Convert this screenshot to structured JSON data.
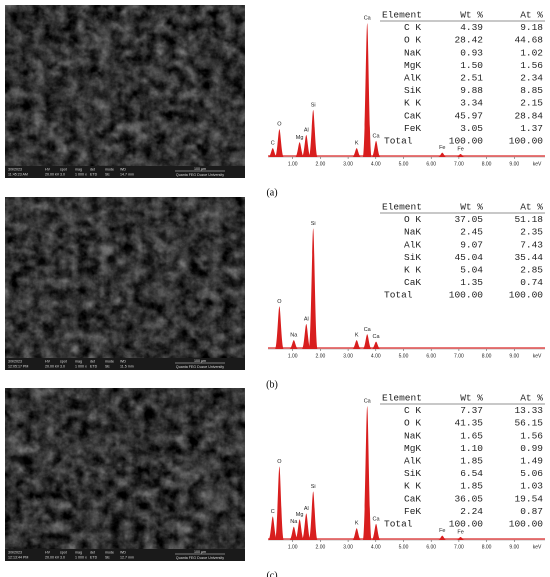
{
  "xaxis": {
    "ticks": [
      {
        "value": 1,
        "label": "1.00"
      },
      {
        "value": 2,
        "label": "2.00"
      },
      {
        "value": 3,
        "label": "3.00"
      },
      {
        "value": 4,
        "label": "4.00"
      },
      {
        "value": 5,
        "label": "5.00"
      },
      {
        "value": 6,
        "label": "6.00"
      },
      {
        "value": 7,
        "label": "7.00"
      },
      {
        "value": 8,
        "label": "8.00"
      },
      {
        "value": 9,
        "label": "9.00"
      }
    ],
    "unit": "keV",
    "xlim": [
      0,
      10
    ],
    "ylim": [
      0,
      100
    ]
  },
  "panels": [
    {
      "label": "(a)",
      "image": {
        "date": "3/9/2023",
        "time": "11:45:23 AM",
        "fields": [
          {
            "label": "HV",
            "value": "20.00 kV"
          },
          {
            "label": "spot",
            "value": "3.0"
          },
          {
            "label": "mag",
            "value": "1 000 x"
          },
          {
            "label": "det",
            "value": "ETD"
          },
          {
            "label": "mode",
            "value": "SE"
          },
          {
            "label": "WD",
            "value": "14.7 mm"
          }
        ],
        "scale": "100 µm",
        "facility": "Quanta FEG Duzce University"
      },
      "peaks": [
        {
          "label": "C",
          "kev": 0.28,
          "height": 6
        },
        {
          "label": "O",
          "kev": 0.52,
          "height": 19
        },
        {
          "label": "Mg",
          "kev": 1.25,
          "height": 10
        },
        {
          "label": "Al",
          "kev": 1.49,
          "height": 15
        },
        {
          "label": "Si",
          "kev": 1.74,
          "height": 32
        },
        {
          "label": "K",
          "kev": 3.31,
          "height": 6
        },
        {
          "label": "Ca",
          "kev": 3.69,
          "height": 91
        },
        {
          "label": "Ca",
          "kev": 4.01,
          "height": 11
        },
        {
          "label": "Fe",
          "kev": 6.4,
          "height": 3
        },
        {
          "label": "Fe",
          "kev": 7.06,
          "height": 2
        }
      ],
      "table": {
        "header": [
          "Element",
          "Wt %",
          "At %"
        ],
        "rows": [
          [
            "C K",
            "4.39",
            "9.18"
          ],
          [
            "O K",
            "28.42",
            "44.68"
          ],
          [
            "NaK",
            "0.93",
            "1.02"
          ],
          [
            "MgK",
            "1.50",
            "1.56"
          ],
          [
            "AlK",
            "2.51",
            "2.34"
          ],
          [
            "SiK",
            "9.88",
            "8.85"
          ],
          [
            "K K",
            "3.34",
            "2.15"
          ],
          [
            "CaK",
            "45.97",
            "28.84"
          ],
          [
            "FeK",
            "3.05",
            "1.37"
          ],
          [
            "Total",
            "100.00",
            "100.00"
          ]
        ]
      }
    },
    {
      "label": "(b)",
      "image": {
        "date": "3/9/2023",
        "time": "12:05:17 PM",
        "fields": [
          {
            "label": "HV",
            "value": "20.00 kV"
          },
          {
            "label": "spot",
            "value": "3.0"
          },
          {
            "label": "mag",
            "value": "1 000 x"
          },
          {
            "label": "det",
            "value": "ETD"
          },
          {
            "label": "mode",
            "value": "SE"
          },
          {
            "label": "WD",
            "value": "11.5 mm"
          }
        ],
        "scale": "100 µm",
        "facility": "Quanta FEG Duzce University"
      },
      "peaks": [
        {
          "label": "O",
          "kev": 0.52,
          "height": 29
        },
        {
          "label": "Na",
          "kev": 1.04,
          "height": 6
        },
        {
          "label": "Al",
          "kev": 1.49,
          "height": 17
        },
        {
          "label": "Si",
          "kev": 1.74,
          "height": 82
        },
        {
          "label": "K",
          "kev": 3.31,
          "height": 6
        },
        {
          "label": "Ca",
          "kev": 3.69,
          "height": 10
        },
        {
          "label": "Ca",
          "kev": 4.01,
          "height": 5
        }
      ],
      "table": {
        "header": [
          "Element",
          "Wt %",
          "At %"
        ],
        "rows": [
          [
            "O K",
            "37.05",
            "51.18"
          ],
          [
            "NaK",
            "2.45",
            "2.35"
          ],
          [
            "AlK",
            "9.07",
            "7.43"
          ],
          [
            "SiK",
            "45.04",
            "35.44"
          ],
          [
            "K K",
            "5.04",
            "2.85"
          ],
          [
            "CaK",
            "1.35",
            "0.74"
          ],
          [
            "Total",
            "100.00",
            "100.00"
          ]
        ]
      }
    },
    {
      "label": "(c)",
      "image": {
        "date": "3/9/2023",
        "time": "12:13:44 PM",
        "fields": [
          {
            "label": "HV",
            "value": "20.00 kV"
          },
          {
            "label": "spot",
            "value": "3.0"
          },
          {
            "label": "mag",
            "value": "1 000 x"
          },
          {
            "label": "det",
            "value": "ETD"
          },
          {
            "label": "mode",
            "value": "SE"
          },
          {
            "label": "WD",
            "value": "12.7 mm"
          }
        ],
        "scale": "100 µm",
        "facility": "Quanta FEG Duzce University"
      },
      "peaks": [
        {
          "label": "C",
          "kev": 0.28,
          "height": 16
        },
        {
          "label": "O",
          "kev": 0.52,
          "height": 50
        },
        {
          "label": "Na",
          "kev": 1.04,
          "height": 9
        },
        {
          "label": "Mg",
          "kev": 1.25,
          "height": 14
        },
        {
          "label": "Al",
          "kev": 1.49,
          "height": 18
        },
        {
          "label": "Si",
          "kev": 1.74,
          "height": 33
        },
        {
          "label": "K",
          "kev": 3.31,
          "height": 8
        },
        {
          "label": "Ca",
          "kev": 3.69,
          "height": 91
        },
        {
          "label": "Ca",
          "kev": 4.01,
          "height": 11
        },
        {
          "label": "Fe",
          "kev": 6.4,
          "height": 3
        },
        {
          "label": "Fe",
          "kev": 7.06,
          "height": 2
        }
      ],
      "table": {
        "header": [
          "Element",
          "Wt %",
          "At %"
        ],
        "rows": [
          [
            "C K",
            "7.37",
            "13.33"
          ],
          [
            "O K",
            "41.35",
            "56.15"
          ],
          [
            "NaK",
            "1.65",
            "1.56"
          ],
          [
            "MgK",
            "1.10",
            "0.99"
          ],
          [
            "AlK",
            "1.85",
            "1.49"
          ],
          [
            "SiK",
            "6.54",
            "5.06"
          ],
          [
            "K K",
            "1.85",
            "1.03"
          ],
          [
            "CaK",
            "36.05",
            "19.54"
          ],
          [
            "FeK",
            "2.24",
            "0.87"
          ],
          [
            "Total",
            "100.00",
            "100.00"
          ]
        ]
      }
    }
  ]
}
